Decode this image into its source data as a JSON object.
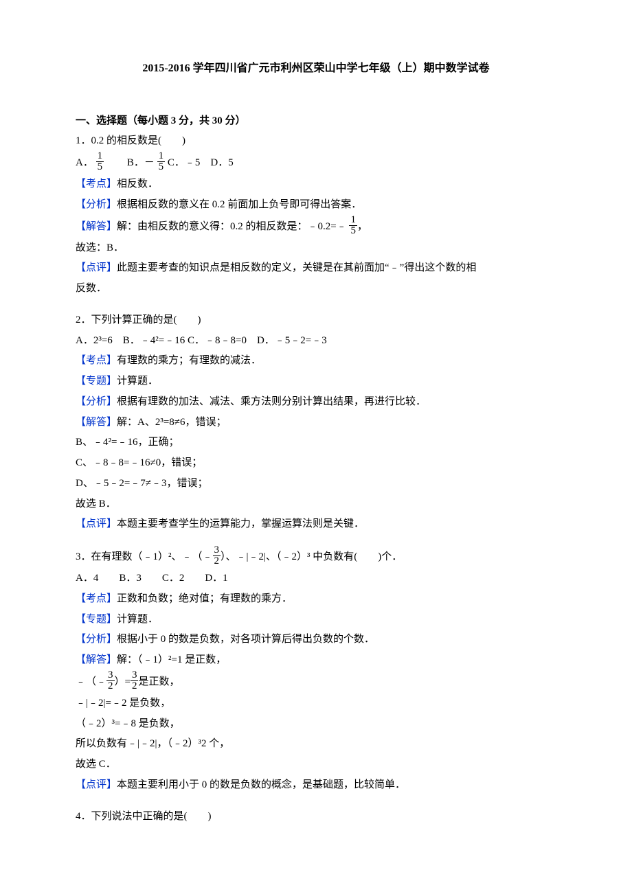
{
  "colors": {
    "blue": "#0033cc",
    "text": "#000000",
    "bg": "#ffffff"
  },
  "title": "2015-2016 学年四川省广元市利州区荣山中学七年级（上）期中数学试卷",
  "section_heading": "一、选择题（每小题 3 分，共 30 分）",
  "q1": {
    "stem": "1．0.2 的相反数是(　　)",
    "opt_A_pre": "A．",
    "opt_B_pre": "　　B．－",
    "opt_C": " C．﹣5　D．5",
    "kaodian_label": "【考点】",
    "kaodian_text": "相反数．",
    "fenxi_label": "【分析】",
    "fenxi_text": "根据相反数的意义在 0.2 前面加上负号即可得出答案．",
    "jieda_label": "【解答】",
    "jieda_text_pre": "解：由相反数的意义得：0.2 的相反数是：﹣0.2=﹣",
    "jieda_text_post": "，",
    "ans": "故选：B．",
    "dianping_label": "【点评】",
    "dianping_text_1": "此题主要考查的知识点是相反数的定义，关键是在其前面加“﹣”得出这个数的相",
    "dianping_text_2": "反数．"
  },
  "q2": {
    "stem": "2．下列计算正确的是(　　)",
    "opts": "A．2³=6　B．﹣4²=﹣16 C．﹣8﹣8=0　D．﹣5﹣2=﹣3",
    "kaodian_label": "【考点】",
    "kaodian_text": "有理数的乘方；有理数的减法．",
    "zhuanti_label": "【专题】",
    "zhuanti_text": "计算题．",
    "fenxi_label": "【分析】",
    "fenxi_text": "根据有理数的加法、减法、乘方法则分别计算出结果，再进行比较．",
    "jieda_label": "【解答】",
    "jieda_text": "解：A、2³=8≠6，错误；",
    "jB": "B、﹣4²=﹣16，正确；",
    "jC": "C、﹣8﹣8=﹣16≠0，错误；",
    "jD": "D、﹣5﹣2=﹣7≠﹣3，错误；",
    "ans": "故选 B．",
    "dianping_label": "【点评】",
    "dianping_text": "本题主要考查学生的运算能力，掌握运算法则是关键．"
  },
  "q3": {
    "stem_pre": "3．在有理数（﹣1）²、﹣（﹣",
    "stem_mid": "）、﹣|﹣2|、（﹣2）³ 中负数有(　　)个．",
    "opts": "A．4　　B．3　　C．2　　D．1",
    "kaodian_label": "【考点】",
    "kaodian_text": "正数和负数；绝对值；有理数的乘方．",
    "zhuanti_label": "【专题】",
    "zhuanti_text": "计算题．",
    "fenxi_label": "【分析】",
    "fenxi_text": "根据小于 0 的数是负数，对各项计算后得出负数的个数．",
    "jieda_label": "【解答】",
    "jieda_text": "解：（﹣1）²=1 是正数，",
    "jline2_pre": "﹣（﹣",
    "jline2_mid": "）=",
    "jline2_post": "是正数，",
    "jline3": "﹣|﹣2|=﹣2 是负数，",
    "jline4": "（﹣2）³=﹣8 是负数，",
    "jline5": "所以负数有﹣|﹣2|，（﹣2）³2 个，",
    "ans": "故选 C．",
    "dianping_label": "【点评】",
    "dianping_text": "本题主要利用小于 0 的数是负数的概念，是基础题，比较简单．"
  },
  "q4": {
    "stem": "4．下列说法中正确的是(　　)"
  },
  "frac": {
    "n1": "1",
    "d5": "5",
    "n3": "3",
    "d2": "2"
  }
}
